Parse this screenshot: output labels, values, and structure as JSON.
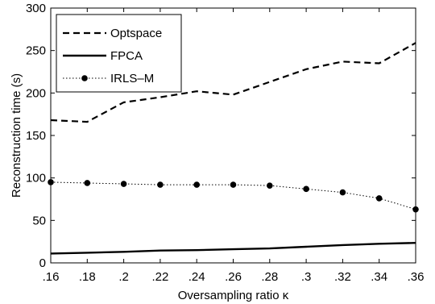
{
  "chart_data": {
    "type": "line",
    "xlabel": "Oversampling ratio κ",
    "ylabel": "Reconstruction time (s)",
    "xlim": [
      0.16,
      0.36
    ],
    "ylim": [
      0,
      300
    ],
    "x": [
      0.16,
      0.18,
      0.2,
      0.22,
      0.24,
      0.26,
      0.28,
      0.3,
      0.32,
      0.34,
      0.36
    ],
    "x_tick_labels": [
      ".16",
      ".18",
      ".2",
      ".22",
      ".24",
      ".26",
      ".28",
      ".3",
      ".32",
      ".34",
      ".36"
    ],
    "y_ticks": [
      0,
      50,
      100,
      150,
      200,
      250,
      300
    ],
    "grid": false,
    "legend_position": "top-left",
    "series": [
      {
        "name": "Optspace",
        "style": "dashed",
        "color": "#000000",
        "values": [
          168,
          166,
          189,
          195,
          202,
          198,
          213,
          228,
          237,
          235,
          259
        ]
      },
      {
        "name": "FPCA",
        "style": "solid",
        "color": "#000000",
        "values": [
          11,
          12,
          13,
          14.5,
          15,
          16,
          17,
          19,
          21,
          22.5,
          23.5
        ]
      },
      {
        "name": "IRLS–M",
        "style": "dotted-markers",
        "color": "#000000",
        "values": [
          95,
          94,
          93,
          92,
          92,
          92,
          91,
          87,
          83,
          76,
          63
        ]
      }
    ]
  }
}
